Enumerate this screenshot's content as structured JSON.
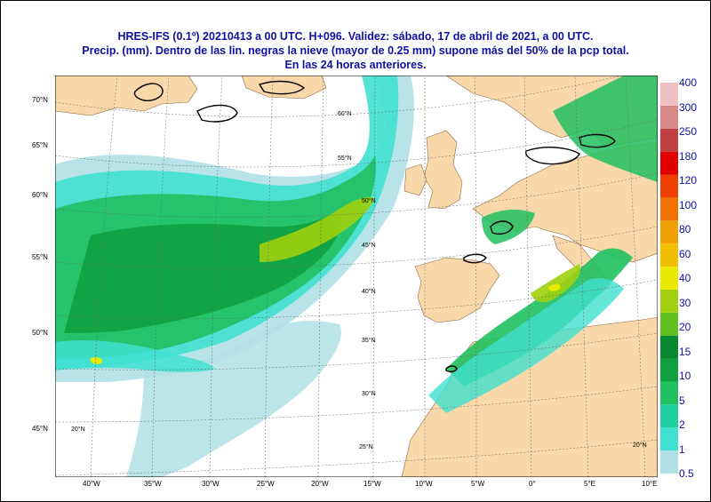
{
  "header": {
    "line1": "HRES-IFS (0.1º) 20210413 a 00 UTC.  H+096. Validez: sábado, 17 de abril de 2021,  a  00 UTC.",
    "line2": "Precip. (mm). Dentro de las lin. negras la nieve (mayor de 0.25 mm) supone más del 50% de la pcp total.",
    "line3": "En las 24 horas anteriores."
  },
  "colorbar": {
    "levels": [
      "0.5",
      "1",
      "2",
      "5",
      "10",
      "15",
      "20",
      "30",
      "40",
      "60",
      "80",
      "100",
      "120",
      "180",
      "250",
      "300",
      "400"
    ],
    "colors": [
      "#b0e0e6",
      "#40e0d0",
      "#20d0a0",
      "#20c060",
      "#10a040",
      "#088830",
      "#60c020",
      "#a0d010",
      "#e8e800",
      "#f0c000",
      "#f0a000",
      "#f07000",
      "#f04000",
      "#e00000",
      "#c04040",
      "#d88888",
      "#f0c0c0"
    ]
  },
  "axes": {
    "bottom_lon": [
      "40°W",
      "35°W",
      "30°W",
      "25°W",
      "20°W",
      "15°W",
      "10°W",
      "5°W",
      "0°",
      "5°E",
      "10°E"
    ],
    "left_lat": [
      "70°N",
      "65°N",
      "60°N",
      "55°N",
      "50°N",
      "45°N"
    ],
    "inner_lat": [
      "60°N",
      "55°N",
      "50°N",
      "45°N",
      "40°N",
      "35°N",
      "30°N",
      "25°N",
      "20°N",
      "20°N"
    ]
  }
}
